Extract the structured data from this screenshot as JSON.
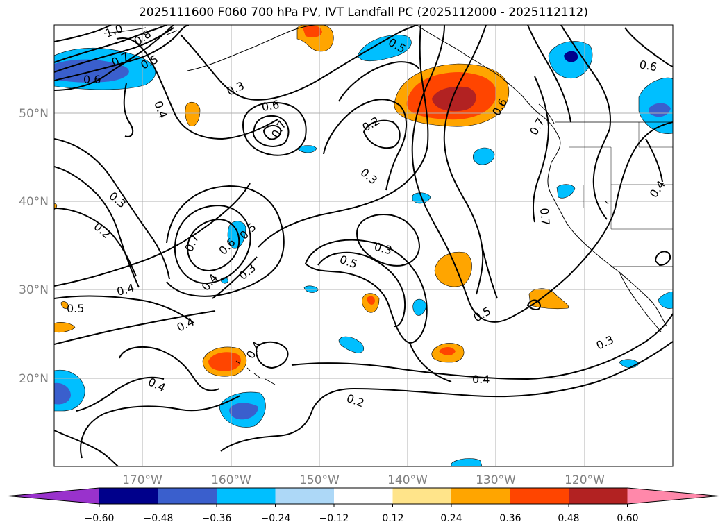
{
  "title": "2025111600 F060 700 hPa PV, IVT Landfall PC (2025112000 - 2025112112)",
  "map": {
    "lat_labels": [
      "50°N",
      "40°N",
      "30°N",
      "20°N"
    ],
    "lon_labels": [
      "170°W",
      "160°W",
      "150°W",
      "140°W",
      "130°W",
      "120°W"
    ],
    "contour_labels": [
      "1.0",
      "0.8",
      "0.7",
      "0.5",
      "0.6",
      "0.4",
      "0.3",
      "0.6",
      "0.7",
      "0.2",
      "0.3",
      "0.5",
      "0.6",
      "0.6",
      "0.3",
      "0.2",
      "0.7",
      "0.6",
      "0.5",
      "0.7",
      "0.4",
      "0.3",
      "0.3",
      "0.5",
      "0.4",
      "0.5",
      "0.4",
      "0.4",
      "0.4",
      "0.2",
      "0.4",
      "0.5",
      "0.3",
      "0.7",
      "0.4"
    ]
  },
  "colorbar": {
    "ticks": [
      "−0.60",
      "−0.48",
      "−0.36",
      "−0.24",
      "−0.12",
      "0.12",
      "0.24",
      "0.36",
      "0.48",
      "0.60"
    ],
    "colors": [
      "#9932cc",
      "#00008b",
      "#3a5fcd",
      "#00bfff",
      "#add8f7",
      "#ffffff",
      "#ffe48a",
      "#ffa500",
      "#ff4500",
      "#b22222",
      "#ff88aa"
    ]
  }
}
